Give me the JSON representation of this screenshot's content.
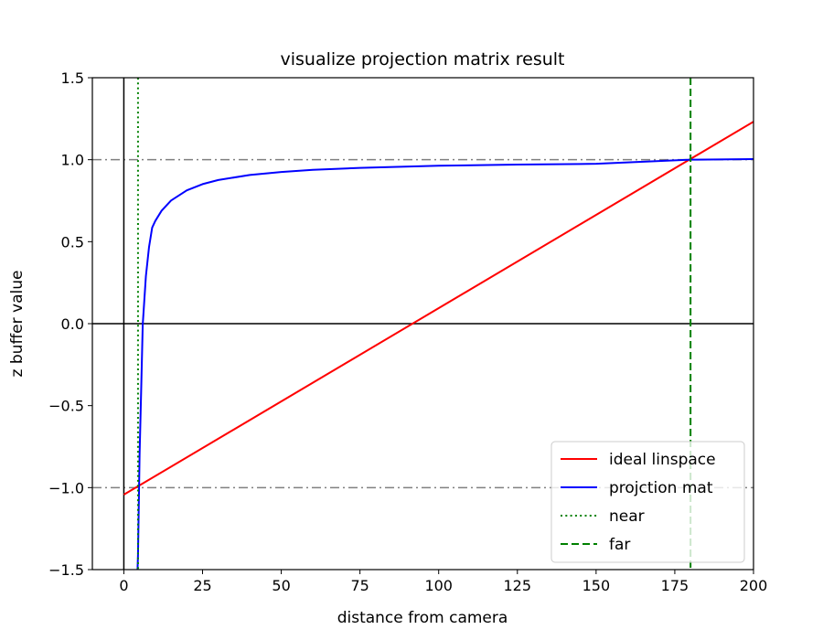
{
  "chart_data": {
    "type": "line",
    "title": "visualize projection matrix result",
    "xlabel": "distance from camera",
    "ylabel": "z buffer value",
    "xlim": [
      -10,
      200
    ],
    "ylim": [
      -1.5,
      1.5
    ],
    "xticks": [
      0,
      25,
      50,
      75,
      100,
      125,
      150,
      175,
      200
    ],
    "xtick_labels": [
      "0",
      "25",
      "50",
      "75",
      "100",
      "125",
      "150",
      "175",
      "200"
    ],
    "yticks": [
      -1.5,
      -1.0,
      -0.5,
      0.0,
      0.5,
      1.0,
      1.5
    ],
    "ytick_labels": [
      "−1.5",
      "−1.0",
      "−0.5",
      "0.0",
      "0.5",
      "1.0",
      "1.5"
    ],
    "grid": false,
    "legend_position": "lower right",
    "series": [
      {
        "name": "ideal linspace",
        "color": "#ff0000",
        "style": "solid",
        "x": [
          0,
          200
        ],
        "y": [
          -1.043,
          1.232
        ]
      },
      {
        "name": "projction mat",
        "color": "#0000ff",
        "style": "solid",
        "x": [
          4.35,
          4.5,
          5,
          5.5,
          6,
          7,
          8,
          9,
          10,
          12,
          15,
          20,
          25,
          30,
          40,
          50,
          60,
          75,
          100,
          125,
          150,
          180,
          200
        ],
        "y": [
          -1.5,
          -1.409,
          -0.801,
          -0.411,
          -0.006,
          0.289,
          0.467,
          0.586,
          0.627,
          0.689,
          0.751,
          0.813,
          0.851,
          0.876,
          0.907,
          0.925,
          0.938,
          0.95,
          0.963,
          0.97,
          0.975,
          1.0,
          1.004
        ]
      },
      {
        "name": "near",
        "color": "#008000",
        "style": "dotted",
        "vertical_x": 4.5
      },
      {
        "name": "far",
        "color": "#008000",
        "style": "dashed",
        "vertical_x": 180
      }
    ],
    "reference_lines": [
      {
        "orientation": "horizontal",
        "value": 1.0,
        "color": "#808080",
        "style": "dashdot"
      },
      {
        "orientation": "horizontal",
        "value": -1.0,
        "color": "#808080",
        "style": "dashdot"
      },
      {
        "orientation": "horizontal",
        "value": 0.0,
        "color": "#000000",
        "style": "solid"
      },
      {
        "orientation": "vertical",
        "value": 0,
        "color": "#000000",
        "style": "solid"
      }
    ]
  }
}
